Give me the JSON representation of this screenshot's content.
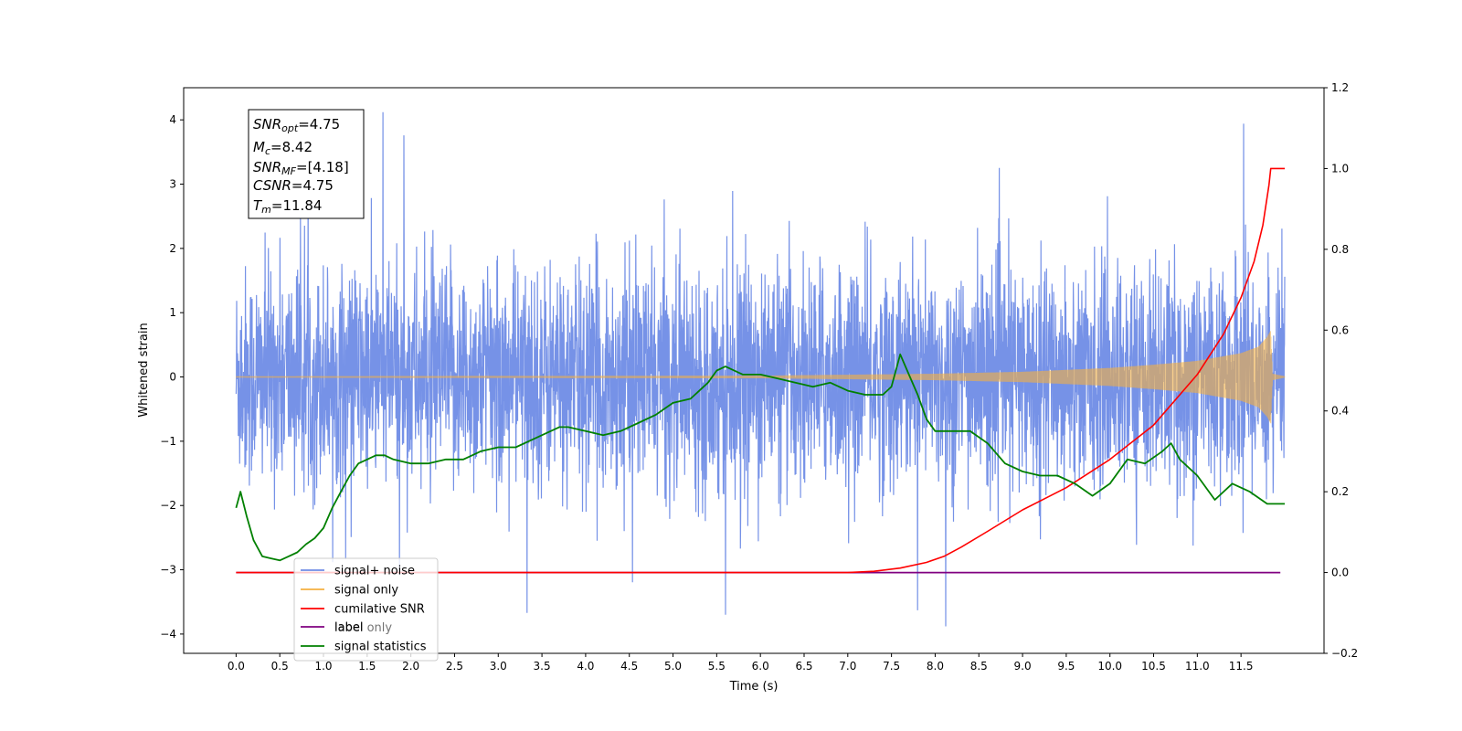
{
  "chart_data": {
    "type": "line",
    "title": "",
    "xlabel": "Time (s)",
    "ylabel": "Whitened strain",
    "y2label": "",
    "xlim": [
      -0.6,
      12.45
    ],
    "ylim": [
      -4.3,
      4.5
    ],
    "y2lim": [
      -0.2,
      1.2
    ],
    "xticks": [
      "0.0",
      "0.5",
      "1.0",
      "1.5",
      "2.0",
      "2.5",
      "3.0",
      "3.5",
      "4.0",
      "4.5",
      "5.0",
      "5.5",
      "6.0",
      "6.5",
      "7.0",
      "7.5",
      "8.0",
      "8.5",
      "9.0",
      "9.5",
      "10.0",
      "10.5",
      "11.0",
      "11.5"
    ],
    "yticks": [
      "4",
      "3",
      "2",
      "1",
      "0",
      "−1",
      "−2",
      "−3",
      "−4"
    ],
    "y2ticks": [
      "1.2",
      "1.0",
      "0.8",
      "0.6",
      "0.4",
      "0.2",
      "0.0",
      "−0.2"
    ],
    "annotation": {
      "snr_opt": {
        "sym": "SNR",
        "sub": "opt",
        "value": "=4.75"
      },
      "mc": {
        "sym": "M",
        "sub": "c",
        "value": "=8.42"
      },
      "snr_mf": {
        "sym": "SNR",
        "sub": "MF",
        "value": "=[4.18]"
      },
      "csnr": {
        "sym": "CSNR",
        "sub": "",
        "value": "=4.75"
      },
      "tm": {
        "sym": "T",
        "sub": "m",
        "value": "=11.84"
      }
    },
    "legend": {
      "placement": "lower-left",
      "entries": [
        {
          "label": "signal+ noise",
          "color": "#6f8ce6"
        },
        {
          "label": "signal only",
          "color": "#f5b041"
        },
        {
          "label": "cumilative SNR",
          "color": "#ff0000"
        },
        {
          "label": "label",
          "color": "#800080"
        },
        {
          "label": "signal statistics",
          "color": "#008000"
        }
      ],
      "ghost_text": [
        "label only"
      ]
    },
    "series": [
      {
        "name": "signal+ noise",
        "axis": "left",
        "color": "#6f8ce6",
        "x_range": [
          0,
          12.0
        ],
        "noise_sigma": 0.85,
        "peak_values": [
          {
            "x": 1.68,
            "y": 4.12
          },
          {
            "x": 1.92,
            "y": 3.76
          },
          {
            "x": 11.53,
            "y": 3.94
          },
          {
            "x": 3.33,
            "y": -3.67
          },
          {
            "x": 5.6,
            "y": -3.7
          },
          {
            "x": 8.12,
            "y": -3.88
          },
          {
            "x": 7.8,
            "y": -3.63
          }
        ]
      },
      {
        "name": "signal only",
        "axis": "left",
        "color": "#f5b041",
        "x_range": [
          0,
          12.0
        ],
        "envelope": [
          [
            0,
            0.01
          ],
          [
            6.0,
            0.02
          ],
          [
            8.0,
            0.05
          ],
          [
            9.0,
            0.08
          ],
          [
            10.0,
            0.14
          ],
          [
            10.5,
            0.19
          ],
          [
            11.0,
            0.25
          ],
          [
            11.5,
            0.37
          ],
          [
            11.7,
            0.47
          ],
          [
            11.8,
            0.62
          ],
          [
            11.84,
            0.72
          ],
          [
            11.86,
            0.05
          ],
          [
            12.0,
            0.01
          ]
        ]
      },
      {
        "name": "cumilative SNR",
        "axis": "right",
        "color": "#ff0000",
        "x": [
          0,
          7.0,
          7.3,
          7.6,
          7.9,
          8.1,
          8.3,
          8.6,
          9.0,
          9.5,
          10.0,
          10.5,
          11.0,
          11.3,
          11.5,
          11.65,
          11.75,
          11.82,
          11.84,
          12.0
        ],
        "y": [
          0.0,
          0.0,
          0.003,
          0.011,
          0.025,
          0.04,
          0.063,
          0.102,
          0.155,
          0.21,
          0.28,
          0.365,
          0.49,
          0.59,
          0.68,
          0.77,
          0.86,
          0.96,
          1.0,
          1.0
        ]
      },
      {
        "name": "label",
        "axis": "right",
        "color": "#800080",
        "x": [
          0,
          11.95
        ],
        "y": [
          0.0,
          0.0
        ]
      },
      {
        "name": "signal statistics",
        "axis": "right",
        "color": "#008000",
        "x": [
          0,
          0.05,
          0.12,
          0.2,
          0.3,
          0.4,
          0.5,
          0.6,
          0.7,
          0.8,
          0.9,
          1.0,
          1.1,
          1.2,
          1.3,
          1.4,
          1.5,
          1.6,
          1.7,
          1.8,
          1.9,
          2.0,
          2.1,
          2.2,
          2.4,
          2.6,
          2.8,
          3.0,
          3.2,
          3.4,
          3.6,
          3.7,
          3.8,
          4.0,
          4.2,
          4.4,
          4.6,
          4.8,
          5.0,
          5.2,
          5.4,
          5.5,
          5.6,
          5.8,
          6.0,
          6.2,
          6.4,
          6.6,
          6.8,
          7.0,
          7.2,
          7.4,
          7.5,
          7.6,
          7.7,
          7.8,
          7.9,
          8.0,
          8.2,
          8.4,
          8.6,
          8.8,
          9.0,
          9.2,
          9.4,
          9.6,
          9.8,
          10.0,
          10.2,
          10.4,
          10.6,
          10.7,
          10.8,
          11.0,
          11.2,
          11.4,
          11.6,
          11.8,
          12.0
        ],
        "y": [
          0.16,
          0.2,
          0.14,
          0.08,
          0.04,
          0.035,
          0.03,
          0.04,
          0.05,
          0.07,
          0.085,
          0.11,
          0.16,
          0.2,
          0.24,
          0.27,
          0.28,
          0.29,
          0.29,
          0.28,
          0.275,
          0.27,
          0.27,
          0.27,
          0.28,
          0.28,
          0.3,
          0.31,
          0.31,
          0.33,
          0.35,
          0.36,
          0.36,
          0.35,
          0.34,
          0.35,
          0.37,
          0.39,
          0.42,
          0.43,
          0.47,
          0.5,
          0.51,
          0.49,
          0.49,
          0.48,
          0.47,
          0.46,
          0.47,
          0.45,
          0.44,
          0.44,
          0.46,
          0.54,
          0.49,
          0.44,
          0.38,
          0.35,
          0.35,
          0.35,
          0.32,
          0.27,
          0.25,
          0.24,
          0.24,
          0.22,
          0.19,
          0.22,
          0.28,
          0.27,
          0.3,
          0.32,
          0.28,
          0.24,
          0.18,
          0.22,
          0.2,
          0.17,
          0.17
        ]
      }
    ]
  }
}
